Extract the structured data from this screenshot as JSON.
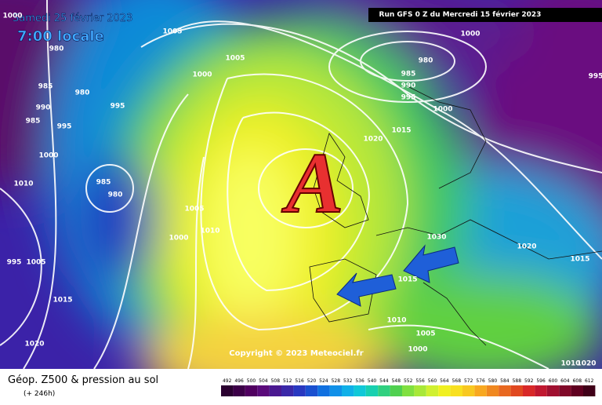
{
  "header": {
    "date": "Samedi 25 février 2023",
    "time": "7:00 locale",
    "run": "Run GFS 0 Z du Mercredi 15 février 2023"
  },
  "map": {
    "high_label": "A",
    "copyright": "Copyright © 2023 Meteociel.fr",
    "isobar_labels": [
      "1000",
      "980",
      "1005",
      "985",
      "990",
      "980",
      "995",
      "985",
      "995",
      "1000",
      "1010",
      "985",
      "980",
      "1005",
      "1010",
      "1000",
      "995",
      "1005",
      "1015",
      "1020",
      "1005",
      "1000",
      "1000",
      "980",
      "985",
      "990",
      "995",
      "1000",
      "1015",
      "1020",
      "1030",
      "1020",
      "1015",
      "1015",
      "1010",
      "1005",
      "1000",
      "995",
      "1010",
      "1020"
    ]
  },
  "footer": {
    "title": "Géop. Z500 & pression au sol",
    "lead": "(+ 246h)",
    "scale": [
      492,
      496,
      500,
      504,
      508,
      512,
      516,
      520,
      524,
      528,
      532,
      536,
      540,
      544,
      548,
      552,
      556,
      560,
      564,
      568,
      572,
      576,
      580,
      584,
      588,
      592,
      596,
      600,
      604,
      608,
      612
    ]
  }
}
